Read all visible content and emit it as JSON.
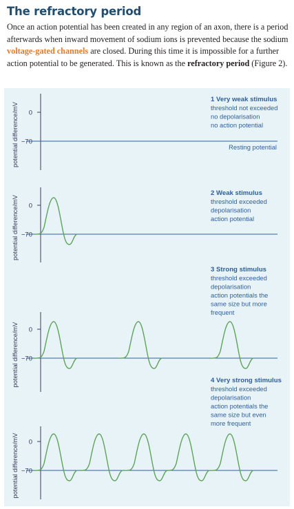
{
  "heading": "The refractory period",
  "paragraph": {
    "part1": "Once an action potential has been created in any region of an axon, there is a period afterwards when inward movement of sodium ions is prevented because the sodium ",
    "highlight": "voltage-gated channels",
    "part2": " are closed. During this time it is impossible for a further action potential to be generated. This is known as the ",
    "emphasis": "refractory period",
    "part3": " (Figure 2)."
  },
  "colors": {
    "heading": "#1f4e6e",
    "highlight": "#e8792a",
    "panel": "#e8f3f7",
    "axis": "#3a3a5a",
    "resting_line": "#2e5f9a",
    "trace": "#5ca35a",
    "label": "#2e5f9a"
  },
  "y_axis_label": "potential difference/mV",
  "resting_label": "Resting potential",
  "panels": [
    {
      "heading": "1  Very weak stimulus",
      "lines": [
        "threshold not exceeded",
        "no depolarisation",
        "no action potential"
      ],
      "ticks": [
        "0",
        "−70"
      ],
      "spikes": 0
    },
    {
      "heading": "2  Weak stimulus",
      "lines": [
        "threshold exceeded",
        "depolarisation",
        "action potential"
      ],
      "ticks": [
        "0",
        "−70"
      ],
      "spikes": 1
    },
    {
      "heading": "3  Strong stimulus",
      "lines": [
        "threshold exceeded",
        "depolarisation",
        "action potentials the",
        "same size but more",
        "frequent"
      ],
      "ticks": [
        "0",
        "−70"
      ],
      "spikes": 3
    },
    {
      "heading": "4  Very strong stimulus",
      "lines": [
        "threshold exceeded",
        "depolarisation",
        "action potentials the",
        "same size but even",
        "more frequent"
      ],
      "ticks": [
        "0",
        "−70"
      ],
      "spikes": 5
    }
  ]
}
